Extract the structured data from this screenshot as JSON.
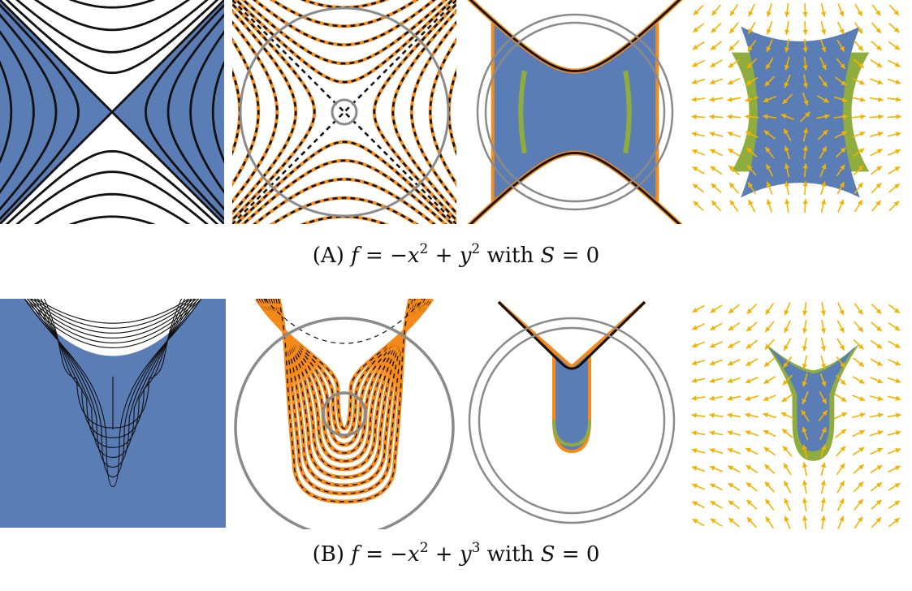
{
  "colors": {
    "fill": "#5b7db6",
    "contour": "#111111",
    "orange": "#f58a1a",
    "green": "#8fad3e",
    "circle": "#8a8a8a",
    "arrow": "#f2b300"
  },
  "figure": {
    "caption_a": {
      "label": "(A)",
      "f": "f",
      "eq1": "=",
      "t1": "−x",
      "e1": "2",
      "op": "+",
      "t2": "y",
      "e2": "2",
      "with": "with",
      "s": "S",
      "eq2": "=",
      "zero": "0"
    },
    "caption_b": {
      "label": "(B)",
      "f": "f",
      "eq1": "=",
      "t1": "−x",
      "e1": "2",
      "op": "+",
      "t2": "y",
      "e2": "3",
      "with": "with",
      "s": "S",
      "eq2": "=",
      "zero": "0"
    }
  }
}
